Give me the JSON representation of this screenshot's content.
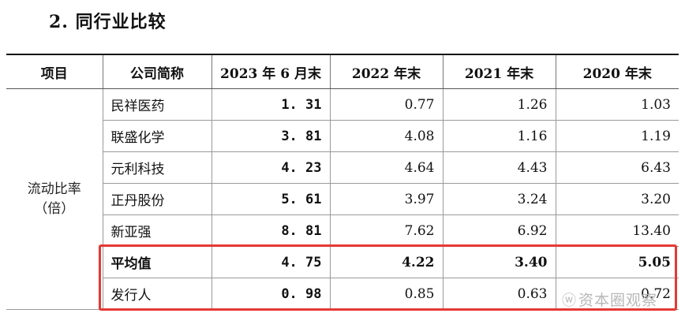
{
  "heading": "2. 同行业比较",
  "table": {
    "headers": [
      "项目",
      "公司简称",
      "2023 年 6 月末",
      "2022 年末",
      "2021 年末",
      "2020 年末"
    ],
    "metric_label": [
      "流动比率",
      "（倍）"
    ],
    "rows": [
      {
        "name": "民祥医药",
        "v2023": "1. 31",
        "v2022": "0.77",
        "v2021": "1.26",
        "v2020": "1.03"
      },
      {
        "name": "联盛化学",
        "v2023": "3. 81",
        "v2022": "4.08",
        "v2021": "1.16",
        "v2020": "1.19"
      },
      {
        "name": "元利科技",
        "v2023": "4. 23",
        "v2022": "4.64",
        "v2021": "4.43",
        "v2020": "6.43"
      },
      {
        "name": "正丹股份",
        "v2023": "5. 61",
        "v2022": "3.97",
        "v2021": "3.24",
        "v2020": "3.20"
      },
      {
        "name": "新亚强",
        "v2023": "8. 81",
        "v2022": "7.62",
        "v2021": "6.92",
        "v2020": "13.40"
      },
      {
        "name": "平均值",
        "v2023": "4. 75",
        "v2022": "4.22",
        "v2021": "3.40",
        "v2020": "5.05"
      },
      {
        "name": "发行人",
        "v2023": "0. 98",
        "v2022": "0.85",
        "v2021": "0.63",
        "v2020": "0.72"
      }
    ]
  },
  "watermark": {
    "icon": "weibo-logo",
    "text": "资本圈观察"
  },
  "highlight_color": "#e53935"
}
